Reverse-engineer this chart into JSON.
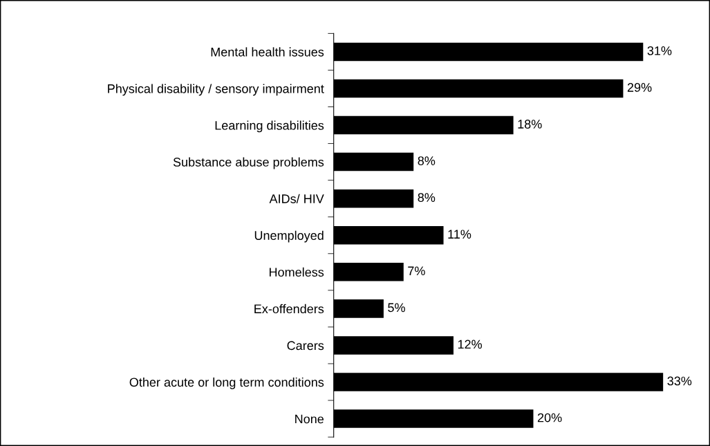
{
  "chart_data": {
    "type": "bar",
    "orientation": "horizontal",
    "categories": [
      "Mental health issues",
      "Physical disability / sensory impairment",
      "Learning disabilities",
      "Substance abuse problems",
      "AIDs/ HIV",
      "Unemployed",
      "Homeless",
      "Ex-offenders",
      "Carers",
      "Other acute or long term conditions",
      "None"
    ],
    "values": [
      31,
      29,
      18,
      8,
      8,
      11,
      7,
      5,
      12,
      33,
      20
    ],
    "value_labels": [
      "31%",
      "29%",
      "18%",
      "8%",
      "8%",
      "11%",
      "7%",
      "5%",
      "12%",
      "33%",
      "20%"
    ],
    "color": "#000000",
    "grid": false,
    "legend": false
  }
}
